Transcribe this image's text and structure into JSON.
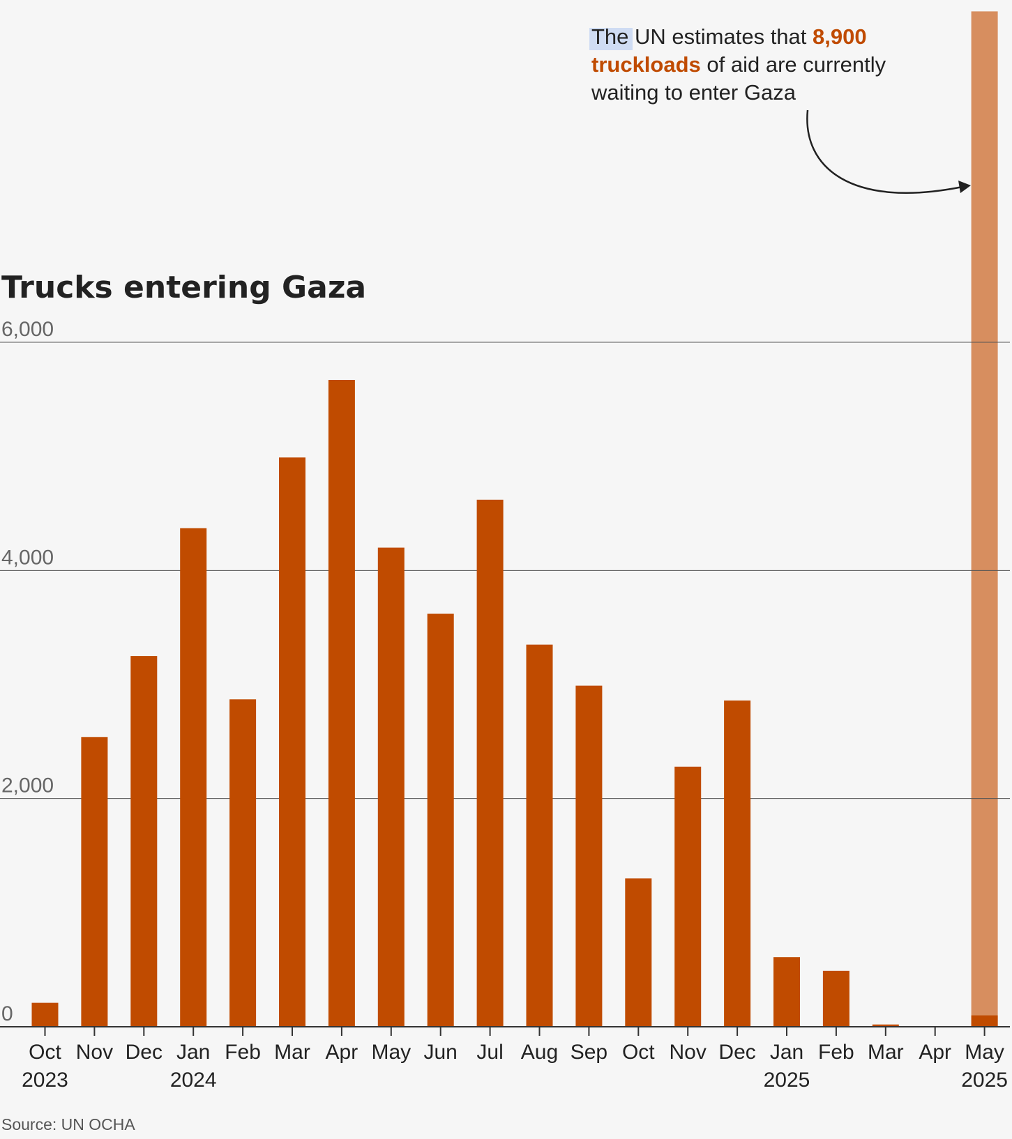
{
  "chart_data": {
    "type": "bar",
    "title": "Trucks entering Gaza",
    "source": "Source: UN OCHA",
    "ylim": [
      0,
      6000
    ],
    "yticks": [
      0,
      2000,
      4000,
      6000
    ],
    "ytick_labels": [
      "0",
      "2,000",
      "4,000",
      "6,000"
    ],
    "grid": true,
    "colors": {
      "bar": "#c04b00",
      "waiting_bar": "#d78e5f",
      "highlight": "#c04b00",
      "background": "#f6f6f6"
    },
    "categories": [
      "Oct 2023",
      "Nov",
      "Dec",
      "Jan 2024",
      "Feb",
      "Mar",
      "Apr",
      "May",
      "Jun",
      "Jul",
      "Aug",
      "Sep",
      "Oct",
      "Nov",
      "Dec",
      "Jan 2025",
      "Feb",
      "Mar",
      "Apr",
      "May 2025"
    ],
    "x_labels": [
      {
        "month": "Oct",
        "year": "2023"
      },
      {
        "month": "Nov",
        "year": ""
      },
      {
        "month": "Dec",
        "year": ""
      },
      {
        "month": "Jan",
        "year": "2024"
      },
      {
        "month": "Feb",
        "year": ""
      },
      {
        "month": "Mar",
        "year": ""
      },
      {
        "month": "Apr",
        "year": ""
      },
      {
        "month": "May",
        "year": ""
      },
      {
        "month": "Jun",
        "year": ""
      },
      {
        "month": "Jul",
        "year": ""
      },
      {
        "month": "Aug",
        "year": ""
      },
      {
        "month": "Sep",
        "year": ""
      },
      {
        "month": "Oct",
        "year": ""
      },
      {
        "month": "Nov",
        "year": ""
      },
      {
        "month": "Dec",
        "year": ""
      },
      {
        "month": "Jan",
        "year": "2025"
      },
      {
        "month": "Feb",
        "year": ""
      },
      {
        "month": "Mar",
        "year": ""
      },
      {
        "month": "Apr",
        "year": ""
      },
      {
        "month": "May",
        "year": "2025"
      }
    ],
    "values": [
      210,
      2540,
      3250,
      4370,
      2870,
      4990,
      5670,
      4200,
      3620,
      4620,
      3350,
      2990,
      1300,
      2280,
      2860,
      610,
      490,
      20,
      0,
      100
    ],
    "waiting_trucks": {
      "category": "May 2025",
      "value": 8900
    },
    "annotation": {
      "text_1": "The",
      "text_2": " UN estimates that ",
      "highlight_1": "8,900",
      "highlight_2": "truckloads",
      "text_3": " of aid are currently",
      "text_4": "waiting to enter Gaza"
    }
  }
}
